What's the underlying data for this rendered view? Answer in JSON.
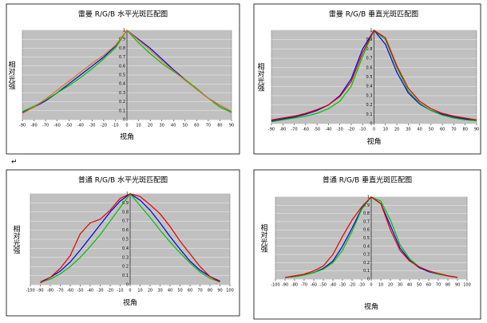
{
  "chart_data": [
    {
      "type": "line",
      "title": "雷曼 R/G/B 水平光斑匹配图",
      "y_label": "相对光强",
      "x_label": "视角",
      "x": [
        -90,
        -80,
        -70,
        -60,
        -50,
        -40,
        -30,
        -20,
        -10,
        0,
        10,
        20,
        30,
        40,
        50,
        60,
        70,
        80,
        90
      ],
      "series": [
        {
          "color": "#0000e0",
          "values": [
            0.08,
            0.14,
            0.21,
            0.3,
            0.4,
            0.5,
            0.6,
            0.7,
            0.82,
            1.0,
            0.9,
            0.8,
            0.68,
            0.56,
            0.45,
            0.34,
            0.24,
            0.16,
            0.09
          ]
        },
        {
          "color": "#00c000",
          "values": [
            0.09,
            0.15,
            0.22,
            0.3,
            0.38,
            0.47,
            0.57,
            0.68,
            0.8,
            1.0,
            0.86,
            0.74,
            0.63,
            0.54,
            0.45,
            0.35,
            0.24,
            0.14,
            0.08
          ]
        },
        {
          "color": "#e07020",
          "values": [
            0.07,
            0.14,
            0.23,
            0.33,
            0.43,
            0.53,
            0.63,
            0.72,
            0.83,
            1.0,
            0.89,
            0.78,
            0.66,
            0.55,
            0.44,
            0.34,
            0.24,
            0.16,
            0.09
          ]
        }
      ],
      "xlim": [
        -90,
        90
      ],
      "xticks": [
        -90,
        -80,
        -70,
        -60,
        -50,
        -40,
        -30,
        -20,
        -10,
        0,
        10,
        20,
        30,
        40,
        50,
        60,
        70,
        80,
        90
      ],
      "ylim": [
        0,
        1
      ],
      "yticks": [
        0,
        0.1,
        0.2,
        0.3,
        0.4,
        0.5,
        0.6,
        0.7,
        0.8,
        0.9,
        1
      ],
      "grid": true
    },
    {
      "type": "line",
      "title": "雷曼 R/G/B 垂直光斑匹配图",
      "y_label": "相对光强",
      "x_label": "视角",
      "x": [
        -90,
        -80,
        -70,
        -60,
        -50,
        -40,
        -30,
        -20,
        -10,
        0,
        10,
        20,
        30,
        40,
        50,
        60,
        70,
        80,
        90
      ],
      "series": [
        {
          "color": "#0000e0",
          "values": [
            0.03,
            0.05,
            0.07,
            0.1,
            0.14,
            0.2,
            0.3,
            0.48,
            0.8,
            1.0,
            0.85,
            0.55,
            0.33,
            0.21,
            0.14,
            0.1,
            0.07,
            0.05,
            0.03
          ]
        },
        {
          "color": "#00c000",
          "values": [
            0.02,
            0.04,
            0.06,
            0.08,
            0.11,
            0.16,
            0.24,
            0.4,
            0.72,
            1.0,
            0.9,
            0.6,
            0.35,
            0.22,
            0.14,
            0.09,
            0.06,
            0.04,
            0.03
          ]
        },
        {
          "color": "#e00000",
          "values": [
            0.04,
            0.06,
            0.08,
            0.11,
            0.15,
            0.2,
            0.29,
            0.45,
            0.76,
            1.0,
            0.92,
            0.62,
            0.38,
            0.24,
            0.16,
            0.11,
            0.08,
            0.06,
            0.04
          ]
        }
      ],
      "xlim": [
        -90,
        90
      ],
      "xticks": [
        -90,
        -80,
        -70,
        -60,
        -50,
        -40,
        -30,
        -20,
        -10,
        0,
        10,
        20,
        30,
        40,
        50,
        60,
        70,
        80,
        90
      ],
      "ylim": [
        0,
        1
      ],
      "yticks": [
        0,
        0.1,
        0.2,
        0.3,
        0.4,
        0.5,
        0.6,
        0.7,
        0.8,
        0.9,
        1
      ],
      "grid": true
    },
    {
      "type": "line",
      "title": "普通 R/G/B 水平光斑匹配图",
      "y_label": "相对光强",
      "x_label": "视角",
      "x": [
        -90,
        -80,
        -70,
        -60,
        -50,
        -40,
        -30,
        -20,
        -10,
        0,
        10,
        20,
        30,
        40,
        50,
        60,
        70,
        80,
        90
      ],
      "series": [
        {
          "color": "#0000e0",
          "values": [
            0.03,
            0.08,
            0.15,
            0.25,
            0.38,
            0.52,
            0.66,
            0.8,
            0.92,
            1.0,
            0.93,
            0.82,
            0.68,
            0.53,
            0.39,
            0.26,
            0.16,
            0.09,
            0.04
          ]
        },
        {
          "color": "#00c000",
          "values": [
            0.03,
            0.06,
            0.12,
            0.2,
            0.3,
            0.42,
            0.55,
            0.7,
            0.85,
            1.0,
            0.87,
            0.74,
            0.6,
            0.47,
            0.35,
            0.24,
            0.14,
            0.07,
            0.03
          ]
        },
        {
          "color": "#e00000",
          "values": [
            0.02,
            0.08,
            0.18,
            0.32,
            0.56,
            0.68,
            0.72,
            0.82,
            0.95,
            1.0,
            0.97,
            0.88,
            0.78,
            0.64,
            0.48,
            0.34,
            0.2,
            0.09,
            0.03
          ]
        }
      ],
      "xlim": [
        -100,
        100
      ],
      "xticks": [
        -100,
        -90,
        -80,
        -70,
        -60,
        -50,
        -40,
        -30,
        -20,
        -10,
        0,
        10,
        20,
        30,
        40,
        50,
        60,
        70,
        80,
        90,
        100
      ],
      "ylim": [
        0,
        1
      ],
      "yticks": [
        0,
        0.1,
        0.2,
        0.3,
        0.4,
        0.5,
        0.6,
        0.7,
        0.8,
        0.9,
        1
      ],
      "grid": true
    },
    {
      "type": "line",
      "title": "普通 R/G/B 垂直光斑匹配图",
      "y_label": "相对光强",
      "x_label": "视角",
      "x": [
        -90,
        -80,
        -70,
        -60,
        -50,
        -40,
        -30,
        -20,
        -10,
        0,
        10,
        20,
        30,
        40,
        50,
        60,
        70,
        80,
        90
      ],
      "series": [
        {
          "color": "#0000e0",
          "values": [
            0.02,
            0.03,
            0.05,
            0.08,
            0.13,
            0.22,
            0.4,
            0.62,
            0.86,
            1.0,
            0.92,
            0.65,
            0.38,
            0.23,
            0.14,
            0.09,
            0.06,
            0.04,
            0.02
          ]
        },
        {
          "color": "#00c000",
          "values": [
            0.02,
            0.03,
            0.05,
            0.08,
            0.12,
            0.2,
            0.35,
            0.58,
            0.85,
            1.0,
            0.95,
            0.72,
            0.42,
            0.25,
            0.15,
            0.1,
            0.06,
            0.04,
            0.02
          ]
        },
        {
          "color": "#e00000",
          "values": [
            0.02,
            0.04,
            0.06,
            0.1,
            0.16,
            0.3,
            0.52,
            0.72,
            0.88,
            1.0,
            0.92,
            0.6,
            0.35,
            0.22,
            0.15,
            0.1,
            0.07,
            0.04,
            0.02
          ]
        }
      ],
      "xlim": [
        -100,
        100
      ],
      "xticks": [
        -100,
        -90,
        -80,
        -70,
        -60,
        -50,
        -40,
        -30,
        -20,
        -10,
        0,
        10,
        20,
        30,
        40,
        50,
        60,
        70,
        80,
        90,
        100
      ],
      "ylim": [
        0,
        1
      ],
      "yticks": [
        0,
        0.1,
        0.2,
        0.3,
        0.4,
        0.5,
        0.6,
        0.7,
        0.8,
        0.9,
        1
      ],
      "grid": true
    }
  ],
  "paragraph_mark": "↵"
}
